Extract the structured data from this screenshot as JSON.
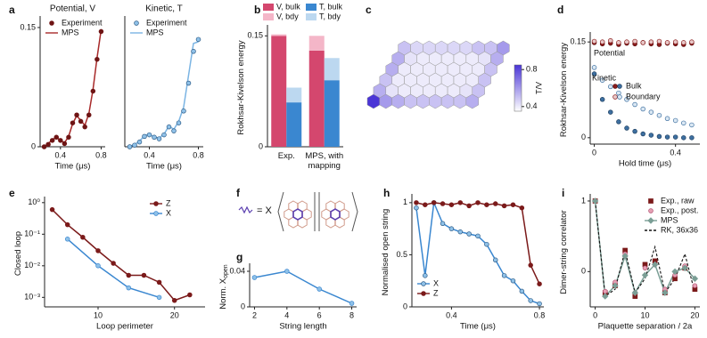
{
  "diagram": {
    "panel": "f",
    "text": "= X"
  },
  "chart_data": [
    {
      "type": "line",
      "panel": "a",
      "title": "Potential, V",
      "xlabel": "Time (μs)",
      "xlim": [
        0.2,
        0.84
      ],
      "xticks": [
        0.4,
        0.8
      ],
      "ylim": [
        0,
        0.16
      ],
      "yticks": [
        0,
        0.15
      ],
      "legend": "upper left",
      "x": [
        0.24,
        0.28,
        0.32,
        0.36,
        0.4,
        0.44,
        0.48,
        0.52,
        0.56,
        0.6,
        0.64,
        0.68,
        0.72,
        0.76,
        0.8
      ],
      "series": [
        {
          "name": "Experiment",
          "color": "#6e1414",
          "marker": "circle",
          "line": false,
          "values": [
            0,
            0.003,
            0.008,
            0.012,
            0.008,
            0.004,
            0.012,
            0.03,
            0.04,
            0.032,
            0.025,
            0.04,
            0.07,
            0.11,
            0.145
          ]
        },
        {
          "name": "MPS",
          "color": "#a82a2a",
          "line": true,
          "values": [
            0,
            0.004,
            0.009,
            0.012,
            0.008,
            0.005,
            0.013,
            0.029,
            0.039,
            0.033,
            0.027,
            0.042,
            0.072,
            0.112,
            0.147
          ]
        }
      ]
    },
    {
      "type": "line",
      "title": "Kinetic, T",
      "xlabel": "Time (μs)",
      "xlim": [
        0.2,
        0.84
      ],
      "xticks": [
        0.4,
        0.8
      ],
      "ylim": [
        0,
        0.16
      ],
      "legend": "upper left",
      "x": [
        0.24,
        0.28,
        0.32,
        0.36,
        0.4,
        0.44,
        0.48,
        0.52,
        0.56,
        0.6,
        0.64,
        0.68,
        0.72,
        0.76,
        0.8
      ],
      "series": [
        {
          "name": "Experiment",
          "color": "#8fc1e8",
          "edge": "#2c5a85",
          "marker": "circle",
          "line": false,
          "values": [
            0,
            0.002,
            0.006,
            0.013,
            0.015,
            0.012,
            0.01,
            0.015,
            0.025,
            0.02,
            0.03,
            0.045,
            0.08,
            0.12,
            0.135
          ]
        },
        {
          "name": "MPS",
          "color": "#7ab4e3",
          "line": true,
          "values": [
            0,
            0.003,
            0.007,
            0.014,
            0.016,
            0.012,
            0.011,
            0.016,
            0.026,
            0.022,
            0.032,
            0.05,
            0.09,
            0.13,
            0.132
          ]
        }
      ]
    },
    {
      "type": "bar",
      "panel": "b",
      "ylabel": "Rokhsar-Kivelson energy",
      "ylim": [
        0,
        0.16
      ],
      "yticks": [
        0,
        0.15
      ],
      "categories": [
        "Exp.",
        "MPS, with mapping"
      ],
      "series": [
        {
          "name": "V, bulk",
          "color": "#d4476e",
          "stack": 0,
          "values": [
            0.15,
            0.13
          ]
        },
        {
          "name": "V, bdy",
          "color": "#f4b6c8",
          "stack": 0,
          "values": [
            0.002,
            0.02
          ]
        },
        {
          "name": "T, bulk",
          "color": "#3a87d0",
          "stack": 1,
          "values": [
            0.06,
            0.09
          ]
        },
        {
          "name": "T, bdy",
          "color": "#bcd8f0",
          "stack": 1,
          "values": [
            0.02,
            0.03
          ]
        }
      ]
    },
    {
      "type": "hexmap",
      "panel": "c",
      "clabel": "T/V",
      "clim": [
        0.35,
        0.85
      ],
      "cticks": [
        0.4,
        0.8
      ],
      "cmap": [
        "#ffffff",
        "#4a35d6"
      ],
      "values": [
        [
          0.5,
          0.45,
          0.45,
          0.45,
          0.45,
          0.45,
          0.5,
          0.5,
          0.6
        ],
        [
          0.55,
          0.42,
          0.4,
          0.4,
          0.4,
          0.4,
          0.4,
          0.42,
          0.55
        ],
        [
          0.55,
          0.4,
          0.4,
          0.4,
          0.4,
          0.4,
          0.4,
          0.4,
          0.5
        ],
        [
          0.5,
          0.4,
          0.4,
          0.4,
          0.4,
          0.4,
          0.4,
          0.4,
          0.5
        ],
        [
          0.55,
          0.42,
          0.4,
          0.4,
          0.4,
          0.4,
          0.4,
          0.42,
          0.5
        ],
        [
          0.85,
          0.6,
          0.55,
          0.5,
          0.5,
          0.5,
          0.5,
          0.5,
          0.55
        ]
      ]
    },
    {
      "type": "scatter",
      "panel": "d",
      "xlabel": "Hold time (μs)",
      "ylabel": "Rokhsar-Kivelson energy",
      "xlim": [
        -0.02,
        0.52
      ],
      "xticks": [
        0,
        0.4
      ],
      "ylim": [
        -0.01,
        0.16
      ],
      "yticks": [
        0,
        0.15
      ],
      "legend_entries": [
        "Bulk",
        "Boundary"
      ],
      "annotations": [
        "Potential",
        "Kinetic"
      ],
      "x": [
        0,
        0.04,
        0.08,
        0.12,
        0.16,
        0.2,
        0.24,
        0.28,
        0.32,
        0.36,
        0.4,
        0.44,
        0.48
      ],
      "series": [
        {
          "legend_index": 0,
          "color": "#8a1c1c",
          "edge": "#5a0e0e",
          "values": [
            0.149,
            0.147,
            0.148,
            0.146,
            0.148,
            0.147,
            0.149,
            0.147,
            0.146,
            0.148,
            0.147,
            0.146,
            0.148
          ]
        },
        {
          "legend_index": 1,
          "color": "#e8c8c8",
          "edge": "#8a1c1c",
          "values": [
            0.151,
            0.15,
            0.152,
            0.149,
            0.15,
            0.151,
            0.149,
            0.15,
            0.151,
            0.149,
            0.15,
            0.149,
            0.15
          ]
        },
        {
          "legend_index": 0,
          "color": "#3d6fa0",
          "edge": "#1f3f60",
          "values": [
            0.1,
            0.06,
            0.04,
            0.025,
            0.015,
            0.01,
            0.006,
            0.004,
            0.002,
            0.001,
            0.001,
            0,
            0
          ]
        },
        {
          "legend_index": 1,
          "color": "#dbe8f3",
          "edge": "#3d6fa0",
          "values": [
            0.11,
            0.09,
            0.08,
            0.07,
            0.06,
            0.052,
            0.045,
            0.04,
            0.035,
            0.03,
            0.027,
            0.023,
            0.02
          ]
        }
      ]
    },
    {
      "type": "line",
      "panel": "e",
      "xlabel": "Loop perimeter",
      "ylabel": "Closed loop",
      "xlim": [
        3,
        24
      ],
      "xticks": [
        10,
        20
      ],
      "ylim": [
        0.0005,
        1.2
      ],
      "ylog": true,
      "yticks": [
        {
          "value": 1,
          "label": "10⁰"
        },
        {
          "value": 0.1,
          "label": "10⁻¹"
        },
        {
          "value": 0.01,
          "label": "10⁻²"
        },
        {
          "value": 0.001,
          "label": "10⁻³"
        }
      ],
      "legend": "upper right",
      "series": [
        {
          "name": "Z",
          "color": "#7b1a1a",
          "marker": "circle",
          "line": true,
          "x": [
            4,
            6,
            8,
            10,
            12,
            14,
            16,
            18,
            20,
            22
          ],
          "values": [
            0.6,
            0.2,
            0.08,
            0.03,
            0.012,
            0.005,
            0.005,
            0.003,
            0.0008,
            0.0012
          ]
        },
        {
          "name": "X",
          "color": "#3a87d0",
          "fill": "#8fc1e8",
          "marker": "circle",
          "line": true,
          "x": [
            6,
            10,
            14,
            18
          ],
          "values": [
            0.07,
            0.01,
            0.002,
            0.001
          ]
        }
      ]
    },
    {
      "type": "line",
      "panel": "g",
      "xlabel": "String length",
      "ylabel": "Norm. X",
      "ylabel_subscript": "open",
      "xlim": [
        1.7,
        8.3
      ],
      "xticks": [
        2,
        4,
        6,
        8
      ],
      "ylim": [
        0,
        0.045
      ],
      "yticks": [
        0,
        0.04
      ],
      "series": [
        {
          "color": "#3a87d0",
          "fill": "#8fc1e8",
          "marker": "circle",
          "line": true,
          "x": [
            2,
            4,
            6,
            8
          ],
          "values": [
            0.033,
            0.04,
            0.02,
            0.004
          ]
        }
      ]
    },
    {
      "type": "line",
      "panel": "h",
      "xlabel": "Time (μs)",
      "ylabel": "Normalised open string",
      "xlim": [
        0.22,
        0.82
      ],
      "xticks": [
        0.4,
        0.8
      ],
      "ylim": [
        0,
        1.05
      ],
      "yticks": [
        0,
        0.5,
        1
      ],
      "legend": "lower left",
      "x": [
        0.24,
        0.28,
        0.32,
        0.36,
        0.4,
        0.44,
        0.48,
        0.52,
        0.56,
        0.6,
        0.64,
        0.68,
        0.72,
        0.76,
        0.8
      ],
      "series": [
        {
          "name": "X",
          "color": "#3a87d0",
          "fill": "#8fc1e8",
          "edge": "#2c5a85",
          "marker": "circle",
          "line": true,
          "values": [
            0.95,
            0.3,
            1,
            0.8,
            0.75,
            0.72,
            0.7,
            0.68,
            0.6,
            0.45,
            0.3,
            0.25,
            0.15,
            0.06,
            0.03
          ]
        },
        {
          "name": "Z",
          "color": "#7b1a1a",
          "marker": "circle",
          "line": true,
          "values": [
            1,
            0.98,
            1,
            0.99,
            0.98,
            1,
            0.97,
            1,
            0.98,
            0.99,
            0.97,
            0.98,
            0.95,
            0.4,
            0.22
          ]
        }
      ]
    },
    {
      "type": "line",
      "panel": "i",
      "xlabel": "Plaquette separation / 2a",
      "ylabel": "Dimer-string correlator",
      "xlim": [
        -1,
        21
      ],
      "xticks": [
        0,
        10,
        20
      ],
      "ylim": [
        -0.5,
        1.05
      ],
      "yticks": [
        0,
        1
      ],
      "legend": "upper right",
      "x": [
        0,
        2,
        4,
        6,
        8,
        10,
        12,
        14,
        16,
        18,
        20
      ],
      "series": [
        {
          "name": "Exp., raw",
          "color": "#7b1a1a",
          "marker": "square",
          "line": false,
          "values": [
            1,
            -0.3,
            -0.2,
            0.3,
            -0.35,
            0.1,
            0.15,
            -0.3,
            -0.1,
            0.05,
            -0.25
          ]
        },
        {
          "name": "Exp., post.",
          "color": "#e6a0b4",
          "edge": "#b05070",
          "marker": "circle",
          "line": false,
          "values": [
            1,
            -0.28,
            -0.15,
            0.25,
            -0.3,
            0.05,
            0.1,
            -0.25,
            -0.05,
            0.08,
            -0.2
          ]
        },
        {
          "name": "MPS",
          "color": "#7a9e95",
          "marker": "diamond",
          "line": true,
          "values": [
            1,
            -0.35,
            -0.2,
            0.22,
            -0.3,
            -0.05,
            0.1,
            -0.3,
            0,
            0.05,
            -0.1
          ]
        },
        {
          "name": "RK, 36x36",
          "color": "#111111",
          "line": true,
          "dash": true,
          "values": [
            1,
            -0.35,
            -0.25,
            0.3,
            -0.3,
            -0.1,
            0.35,
            -0.3,
            -0.1,
            0.25,
            -0.3
          ]
        }
      ]
    }
  ]
}
